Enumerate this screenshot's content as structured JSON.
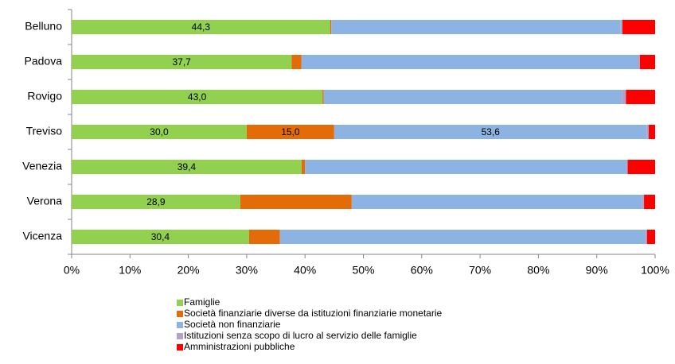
{
  "chart_data": {
    "type": "stacked-bar-horizontal",
    "categories": [
      "Belluno",
      "Padova",
      "Rovigo",
      "Treviso",
      "Venezia",
      "Verona",
      "Vicenza"
    ],
    "series": [
      {
        "name": "Famiglie",
        "color": "#92d050",
        "values": [
          44.3,
          37.7,
          43.0,
          30.0,
          39.4,
          28.9,
          30.4
        ],
        "value_labels": [
          "44,3",
          "37,7",
          "43,0",
          "30,0",
          "39,4",
          "28,9",
          "30,4"
        ]
      },
      {
        "name": "Società finanziarie diverse da istituzioni finanziarie monetarie",
        "color": "#e36c09",
        "values": [
          0.2,
          1.7,
          0.2,
          15.0,
          0.6,
          19.1,
          5.3
        ],
        "value_labels": [
          null,
          null,
          null,
          "15,0",
          null,
          null,
          null
        ]
      },
      {
        "name": "Società non finanziarie",
        "color": "#8db3e2",
        "values": [
          49.6,
          57.6,
          51.1,
          53.6,
          55.1,
          49.8,
          62.7
        ],
        "value_labels": [
          null,
          null,
          null,
          "53,6",
          null,
          null,
          null
        ]
      },
      {
        "name": "Istituzioni senza scopo di lucro al servizio delle famiglie",
        "color": "#b3a2c7",
        "values": [
          0.3,
          0.4,
          0.7,
          0.3,
          0.2,
          0.3,
          0.2
        ]
      },
      {
        "name": "Amministrazioni pubbliche",
        "color": "#ff0000",
        "values": [
          5.6,
          2.6,
          5.0,
          1.1,
          4.7,
          1.9,
          1.4
        ]
      }
    ],
    "xlim": [
      0,
      100
    ],
    "xticks": [
      {
        "value": 0,
        "label": "0%"
      },
      {
        "value": 10,
        "label": "10%"
      },
      {
        "value": 20,
        "label": "20%"
      },
      {
        "value": 30,
        "label": "30%"
      },
      {
        "value": 40,
        "label": "40%"
      },
      {
        "value": 50,
        "label": "50%"
      },
      {
        "value": 60,
        "label": "60%"
      },
      {
        "value": 70,
        "label": "70%"
      },
      {
        "value": 80,
        "label": "80%"
      },
      {
        "value": 90,
        "label": "90%"
      },
      {
        "value": 100,
        "label": "100%"
      }
    ],
    "legend": "bottom"
  }
}
